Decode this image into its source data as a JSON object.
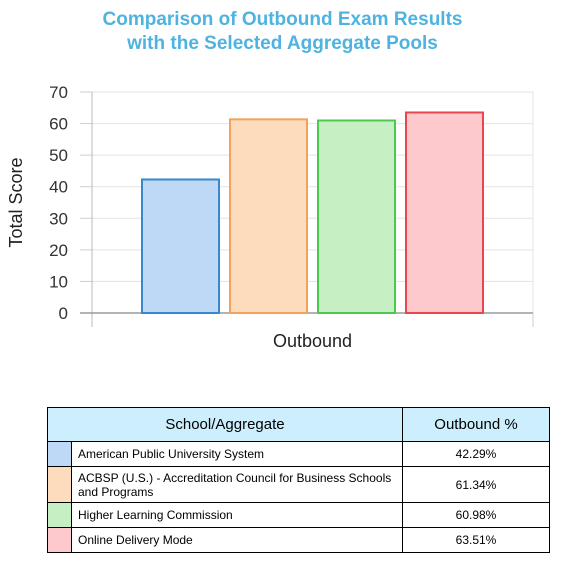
{
  "title_lines": [
    "Comparison of Outbound Exam Results",
    "with the Selected Aggregate Pools"
  ],
  "chart_data": {
    "type": "bar",
    "title": "Comparison of Outbound Exam Results with the Selected Aggregate Pools",
    "xlabel": "Outbound",
    "ylabel": "Total Score",
    "ylim": [
      0,
      70
    ],
    "yticks": [
      0,
      10,
      20,
      30,
      40,
      50,
      60,
      70
    ],
    "grid": true,
    "series": [
      {
        "name": "American Public University System",
        "value": 42.29,
        "fill": "#bdd9f5",
        "stroke": "#3a87d0"
      },
      {
        "name": "ACBSP (U.S.) - Accreditation Council for Business Schools and Programs",
        "value": 61.34,
        "fill": "#fddcbd",
        "stroke": "#f3a25a"
      },
      {
        "name": "Higher Learning Commission",
        "value": 60.98,
        "fill": "#c6efc4",
        "stroke": "#4cc94c"
      },
      {
        "name": "Online Delivery Mode",
        "value": 63.51,
        "fill": "#fdc9cc",
        "stroke": "#e8474f"
      }
    ]
  },
  "table": {
    "headers": [
      "School/Aggregate",
      "Outbound %"
    ],
    "rows": [
      {
        "name": "American Public University System",
        "pct": "42.29%",
        "color": "#bdd9f5"
      },
      {
        "name": "ACBSP (U.S.) - Accreditation Council for Business Schools and Programs",
        "pct": "61.34%",
        "color": "#fddcbd"
      },
      {
        "name": "Higher Learning Commission",
        "pct": "60.98%",
        "color": "#c6efc4"
      },
      {
        "name": "Online Delivery Mode",
        "pct": "63.51%",
        "color": "#fdc9cc"
      }
    ]
  }
}
